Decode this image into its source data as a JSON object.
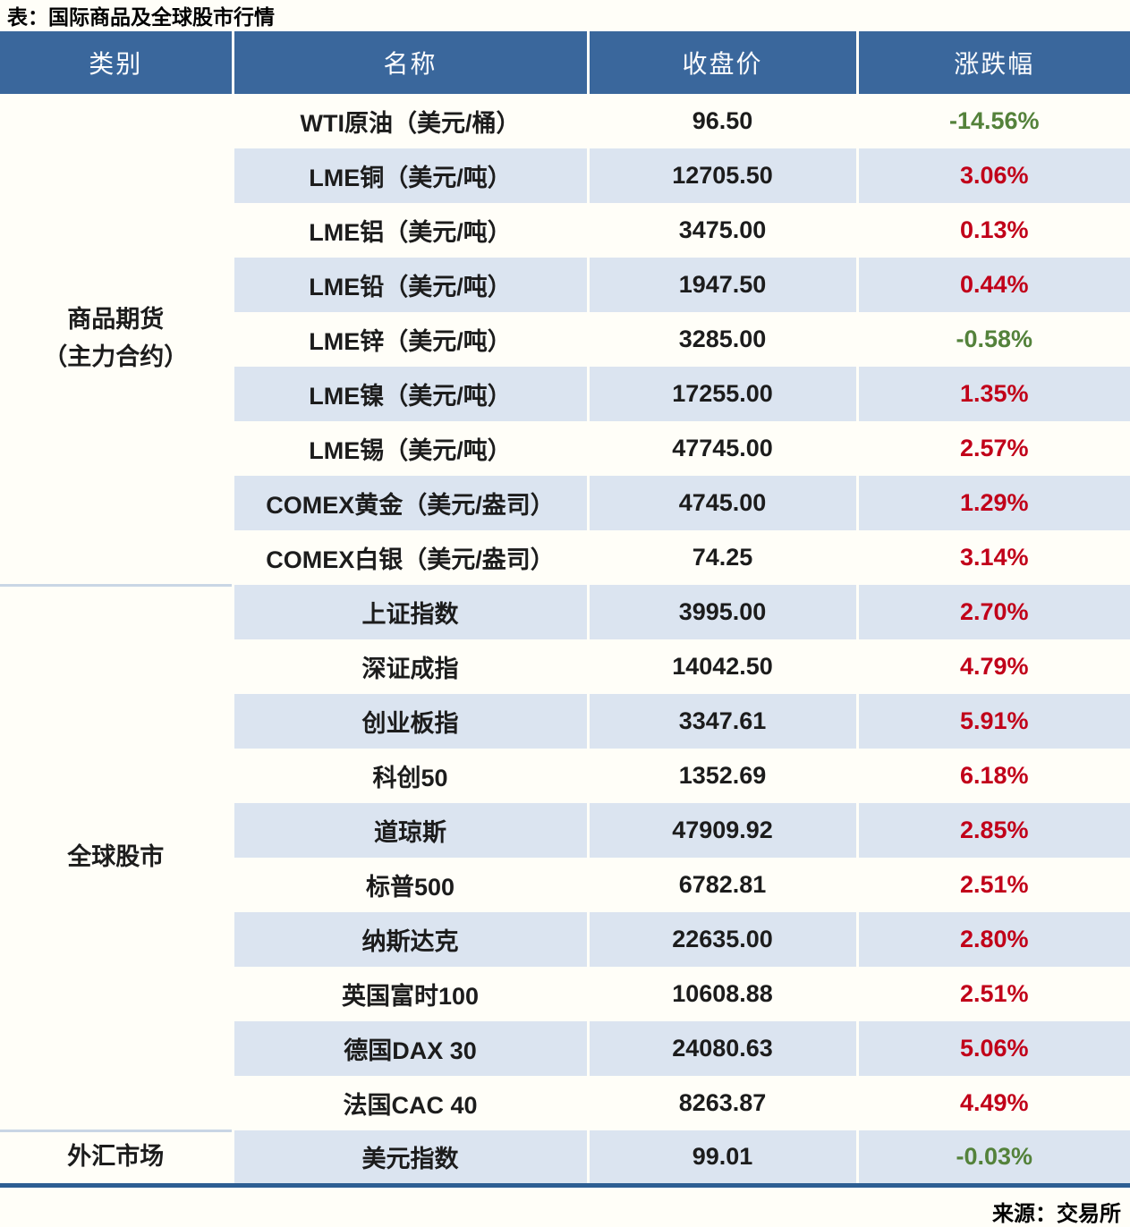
{
  "page": {
    "title": "表：国际商品及全球股市行情",
    "source": "来源：交易所"
  },
  "colors": {
    "header_bg": "#3A679C",
    "stripe_bg": "#DBE4F0",
    "up_red": "#C10019",
    "down_green": "#54823B",
    "bottom_border": "#2D5E93",
    "category_divider": "#C9D6E5"
  },
  "chart_data": {
    "type": "table",
    "title": "表：国际商品及全球股市行情",
    "source": "来源：交易所",
    "columns": [
      "类别",
      "名称",
      "收盘价",
      "涨跌幅"
    ],
    "groups": [
      {
        "category": "商品期货（主力合约）",
        "category_lines": [
          "商品期货",
          "（主力合约）"
        ],
        "rows": [
          {
            "name": "WTI原油（美元/桶）",
            "close": "96.50",
            "change": "-14.56%"
          },
          {
            "name": "LME铜（美元/吨）",
            "close": "12705.50",
            "change": "3.06%"
          },
          {
            "name": "LME铝（美元/吨）",
            "close": "3475.00",
            "change": "0.13%"
          },
          {
            "name": "LME铅（美元/吨）",
            "close": "1947.50",
            "change": "0.44%"
          },
          {
            "name": "LME锌（美元/吨）",
            "close": "3285.00",
            "change": "-0.58%"
          },
          {
            "name": "LME镍（美元/吨）",
            "close": "17255.00",
            "change": "1.35%"
          },
          {
            "name": "LME锡（美元/吨）",
            "close": "47745.00",
            "change": "2.57%"
          },
          {
            "name": "COMEX黄金（美元/盎司）",
            "close": "4745.00",
            "change": "1.29%"
          },
          {
            "name": "COMEX白银（美元/盎司）",
            "close": "74.25",
            "change": "3.14%"
          }
        ]
      },
      {
        "category": "全球股市",
        "category_lines": [
          "全球股市"
        ],
        "rows": [
          {
            "name": "上证指数",
            "close": "3995.00",
            "change": "2.70%"
          },
          {
            "name": "深证成指",
            "close": "14042.50",
            "change": "4.79%"
          },
          {
            "name": "创业板指",
            "close": "3347.61",
            "change": "5.91%"
          },
          {
            "name": "科创50",
            "close": "1352.69",
            "change": "6.18%"
          },
          {
            "name": "道琼斯",
            "close": "47909.92",
            "change": "2.85%"
          },
          {
            "name": "标普500",
            "close": "6782.81",
            "change": "2.51%"
          },
          {
            "name": "纳斯达克",
            "close": "22635.00",
            "change": "2.80%"
          },
          {
            "name": "英国富时100",
            "close": "10608.88",
            "change": "2.51%"
          },
          {
            "name": "德国DAX 30",
            "close": "24080.63",
            "change": "5.06%"
          },
          {
            "name": "法国CAC 40",
            "close": "8263.87",
            "change": "4.49%"
          }
        ]
      },
      {
        "category": "外汇市场",
        "category_lines": [
          "外汇市场"
        ],
        "rows": [
          {
            "name": "美元指数",
            "close": "99.01",
            "change": "-0.03%"
          }
        ]
      }
    ]
  }
}
